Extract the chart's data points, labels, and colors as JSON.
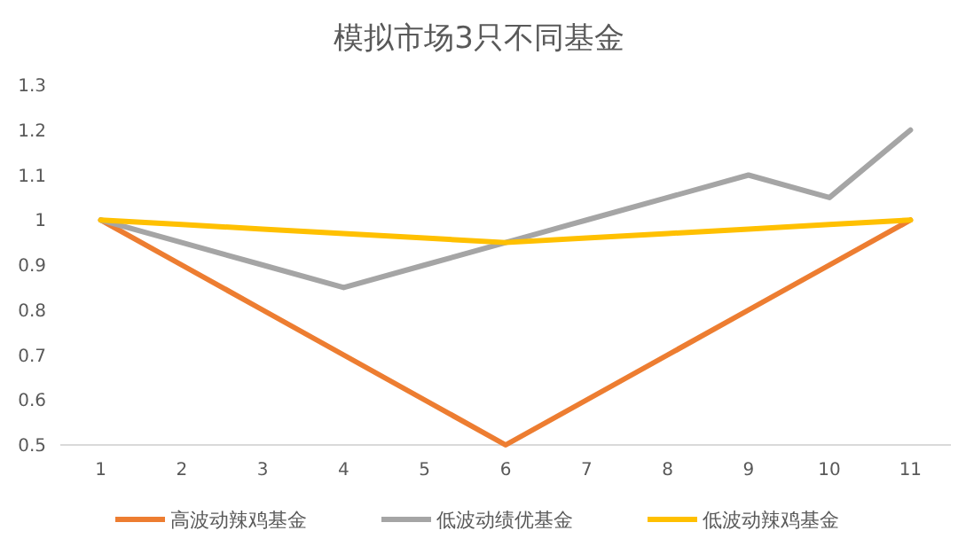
{
  "chart_data": {
    "type": "line",
    "title": "模拟市场3只不同基金",
    "categories": [
      "1",
      "2",
      "3",
      "4",
      "5",
      "6",
      "7",
      "8",
      "9",
      "10",
      "11"
    ],
    "series": [
      {
        "name": "高波动辣鸡基金",
        "color": "#ed7d31",
        "values": [
          1,
          0.9,
          0.8,
          0.7,
          0.6,
          0.5,
          0.6,
          0.7,
          0.8,
          0.9,
          1
        ]
      },
      {
        "name": "低波动绩优基金",
        "color": "#a5a5a5",
        "values": [
          1,
          0.95,
          0.9,
          0.85,
          0.9,
          0.95,
          1,
          1.05,
          1.1,
          1.05,
          1.2
        ]
      },
      {
        "name": "低波动辣鸡基金",
        "color": "#ffc000",
        "values": [
          1,
          0.99,
          0.98,
          0.97,
          0.96,
          0.95,
          0.96,
          0.97,
          0.98,
          0.99,
          1
        ]
      }
    ],
    "ylim": [
      0.5,
      1.3
    ],
    "yticks": [
      0.5,
      0.6,
      0.7,
      0.8,
      0.9,
      1,
      1.1,
      1.2,
      1.3
    ],
    "grid": false,
    "legend": "bottom",
    "marker": "none",
    "line_style": "solid"
  }
}
